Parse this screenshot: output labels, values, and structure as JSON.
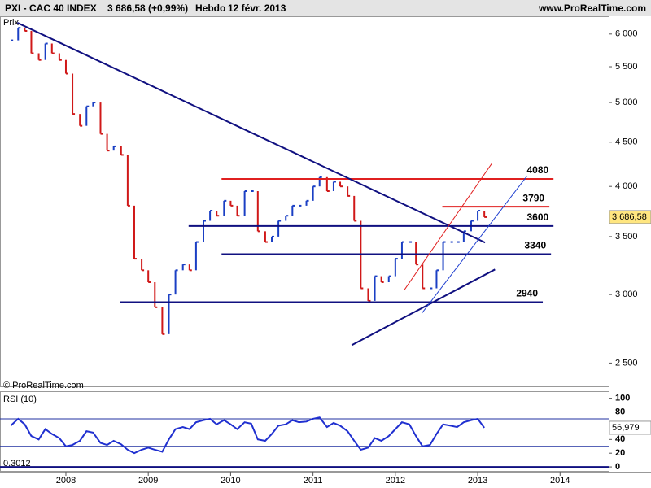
{
  "header": {
    "title": "PXI - CAC 40 INDEX",
    "quote": "3 686,58 (+0,99%)",
    "period": "Hebdo",
    "date": "12 févr. 2013",
    "site": "www.ProRealTime.com",
    "copyright": "© ProRealTime.com"
  },
  "chart_data": [
    {
      "type": "price",
      "y_label": "Prix",
      "log_scale": true,
      "x": [
        2007.33,
        2007.42,
        2007.5,
        2007.58,
        2007.67,
        2007.75,
        2007.83,
        2007.92,
        2008.0,
        2008.08,
        2008.17,
        2008.25,
        2008.33,
        2008.42,
        2008.5,
        2008.58,
        2008.67,
        2008.75,
        2008.83,
        2008.92,
        2009.0,
        2009.08,
        2009.17,
        2009.25,
        2009.33,
        2009.42,
        2009.5,
        2009.58,
        2009.67,
        2009.75,
        2009.83,
        2009.92,
        2010.0,
        2010.08,
        2010.17,
        2010.25,
        2010.33,
        2010.42,
        2010.5,
        2010.58,
        2010.67,
        2010.75,
        2010.83,
        2010.92,
        2011.0,
        2011.08,
        2011.17,
        2011.25,
        2011.33,
        2011.42,
        2011.5,
        2011.58,
        2011.67,
        2011.75,
        2011.83,
        2011.92,
        2012.0,
        2012.08,
        2012.17,
        2012.25,
        2012.33,
        2012.42,
        2012.5,
        2012.58,
        2012.67,
        2012.75,
        2012.83,
        2012.92,
        2013.0,
        2013.08
      ],
      "values": [
        5900,
        6100,
        6050,
        5700,
        5600,
        5850,
        5700,
        5600,
        5400,
        4850,
        4700,
        4950,
        5000,
        4600,
        4400,
        4450,
        4350,
        3800,
        3300,
        3200,
        3100,
        2900,
        2700,
        3000,
        3200,
        3250,
        3200,
        3450,
        3650,
        3750,
        3700,
        3850,
        3800,
        3700,
        3950,
        3950,
        3550,
        3450,
        3500,
        3650,
        3700,
        3800,
        3800,
        3850,
        4000,
        4100,
        3950,
        4050,
        4000,
        3900,
        3650,
        3050,
        2950,
        3150,
        3100,
        3150,
        3300,
        3450,
        3450,
        3250,
        3050,
        3050,
        3200,
        3450,
        3450,
        3450,
        3550,
        3650,
        3750,
        3686.58
      ],
      "last_value_label": "3 686,58",
      "up_color": "#1a3fc4",
      "down_color": "#d01818",
      "xlim": [
        2007.2,
        2014.59
      ],
      "ylim": [
        2350,
        6290
      ],
      "xticks": [
        2008,
        2009,
        2010,
        2011,
        2012,
        2013,
        2014
      ],
      "yticks": [
        {
          "value": 2500,
          "label": "2 500"
        },
        {
          "value": 3000,
          "label": "3 000"
        },
        {
          "value": 3500,
          "label": "3 500"
        },
        {
          "value": 4000,
          "label": "4 000"
        },
        {
          "value": 4500,
          "label": "4 500"
        },
        {
          "value": 5000,
          "label": "5 000"
        },
        {
          "value": 5500,
          "label": "5 500"
        },
        {
          "value": 6000,
          "label": "6 000"
        }
      ],
      "levels": [
        {
          "value": 4080,
          "x": [
            2009.89,
            2013.92
          ],
          "color": "#e02020"
        },
        {
          "value": 3790,
          "x": [
            2012.57,
            2013.87
          ],
          "color": "#e02020"
        },
        {
          "value": 3600,
          "x": [
            2009.49,
            2013.92
          ],
          "color": "#101080"
        },
        {
          "value": 3340,
          "x": [
            2009.89,
            2013.89
          ],
          "color": "#101080"
        },
        {
          "value": 2940,
          "x": [
            2008.66,
            2013.79
          ],
          "color": "#101080"
        }
      ],
      "trendlines": [
        {
          "x": [
            2007.41,
            2013.09
          ],
          "y": [
            6183,
            3445
          ],
          "color": "#101080",
          "width": 2
        },
        {
          "x": [
            2011.47,
            2013.21
          ],
          "y": [
            2622,
            3207
          ],
          "color": "#101080",
          "width": 2
        },
        {
          "x": [
            2012.32,
            2013.6
          ],
          "y": [
            2853,
            4114
          ],
          "color": "#2040d0",
          "width": 1
        },
        {
          "x": [
            2012.11,
            2013.17
          ],
          "y": [
            3038,
            4250
          ],
          "color": "#e02020",
          "width": 1
        }
      ]
    },
    {
      "type": "rsi",
      "title": "RSI (10)",
      "min_label": "0,3012",
      "color": "#2030d0",
      "values": [
        60,
        70,
        62,
        45,
        40,
        55,
        48,
        42,
        30,
        32,
        38,
        52,
        50,
        35,
        32,
        38,
        33,
        25,
        20,
        25,
        28,
        25,
        22,
        40,
        55,
        58,
        55,
        65,
        68,
        70,
        62,
        68,
        62,
        55,
        65,
        63,
        40,
        38,
        48,
        60,
        62,
        68,
        65,
        66,
        70,
        72,
        58,
        64,
        60,
        52,
        38,
        25,
        28,
        42,
        38,
        45,
        55,
        65,
        62,
        45,
        30,
        32,
        48,
        62,
        60,
        58,
        65,
        68,
        70,
        56.979
      ],
      "last_value_label": "56,979",
      "levels": [
        70,
        30
      ],
      "ylim": [
        -7,
        109
      ],
      "yticks": [
        0,
        20,
        40,
        80,
        100
      ]
    }
  ]
}
